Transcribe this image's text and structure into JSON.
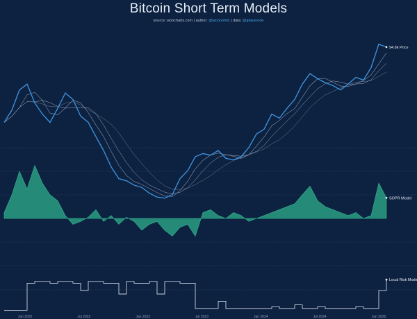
{
  "chart_data": {
    "type": "line",
    "title": "Bitcoin Short Term Models",
    "subtitle": {
      "prefix": "source: ",
      "source": "woocharts.com",
      "author_prefix": " | author: ",
      "author": "@woonomic",
      "data_prefix": " | data: ",
      "data": "@glassnode"
    },
    "x_ticks": [
      "Jan 2022",
      "Jul 2022",
      "Jan 2023",
      "Jul 2023",
      "Jan 2024",
      "Jul 2024",
      "Jan 2025"
    ],
    "panels": [
      {
        "name": "Price",
        "label": "94.8k Price",
        "color": "#3d8fd8",
        "log_scale": true,
        "x": [
          0,
          0.02,
          0.04,
          0.06,
          0.08,
          0.1,
          0.12,
          0.14,
          0.16,
          0.18,
          0.2,
          0.22,
          0.24,
          0.26,
          0.28,
          0.3,
          0.32,
          0.34,
          0.36,
          0.38,
          0.4,
          0.42,
          0.44,
          0.46,
          0.48,
          0.5,
          0.52,
          0.54,
          0.56,
          0.58,
          0.6,
          0.62,
          0.64,
          0.66,
          0.68,
          0.7,
          0.72,
          0.74,
          0.76,
          0.78,
          0.8,
          0.82,
          0.84,
          0.86,
          0.88,
          0.9,
          0.92,
          0.94,
          0.96,
          0.98,
          1
        ],
        "values": [
          40000,
          46000,
          58000,
          62000,
          50000,
          44000,
          40000,
          47000,
          56000,
          52000,
          43000,
          40000,
          34000,
          29000,
          24000,
          21000,
          20500,
          19500,
          19000,
          17800,
          17000,
          16800,
          17500,
          21000,
          23000,
          27000,
          28000,
          27500,
          29000,
          26500,
          26000,
          27000,
          30000,
          35000,
          37000,
          44000,
          42000,
          47000,
          52000,
          62000,
          70000,
          66000,
          63000,
          61000,
          58000,
          62000,
          67000,
          65000,
          75000,
          98000,
          94800
        ]
      },
      {
        "name": "SOPR",
        "label": "SOPR Model",
        "color": "#2a9d82",
        "x": [
          0,
          0.02,
          0.04,
          0.06,
          0.08,
          0.1,
          0.12,
          0.14,
          0.16,
          0.18,
          0.2,
          0.22,
          0.24,
          0.26,
          0.28,
          0.3,
          0.32,
          0.34,
          0.36,
          0.38,
          0.4,
          0.42,
          0.44,
          0.46,
          0.48,
          0.5,
          0.52,
          0.54,
          0.56,
          0.58,
          0.6,
          0.62,
          0.64,
          0.66,
          0.68,
          0.7,
          0.72,
          0.74,
          0.76,
          0.78,
          0.8,
          0.82,
          0.84,
          0.86,
          0.88,
          0.9,
          0.92,
          0.94,
          0.96,
          0.98,
          1
        ],
        "values": [
          0.1,
          0.4,
          0.8,
          0.5,
          0.9,
          0.6,
          0.4,
          0.3,
          0.05,
          -0.1,
          -0.05,
          0.02,
          0.15,
          -0.05,
          0.05,
          -0.1,
          0.02,
          -0.05,
          -0.2,
          -0.1,
          -0.05,
          -0.2,
          -0.3,
          -0.15,
          -0.1,
          -0.3,
          0.1,
          0.15,
          0.05,
          0.0,
          0.1,
          0.05,
          -0.05,
          0.0,
          0.05,
          0.1,
          0.15,
          0.2,
          0.25,
          0.4,
          0.55,
          0.3,
          0.2,
          0.15,
          0.1,
          0.05,
          0.1,
          0.0,
          0.05,
          0.6,
          0.35
        ]
      },
      {
        "name": "Local Risk",
        "label": "Local Risk Model",
        "color": "#c9d3df",
        "x": [
          0,
          0.02,
          0.04,
          0.06,
          0.08,
          0.1,
          0.12,
          0.14,
          0.16,
          0.18,
          0.2,
          0.22,
          0.24,
          0.26,
          0.28,
          0.3,
          0.32,
          0.34,
          0.36,
          0.38,
          0.4,
          0.42,
          0.44,
          0.46,
          0.48,
          0.5,
          0.52,
          0.54,
          0.56,
          0.58,
          0.6,
          0.62,
          0.64,
          0.66,
          0.68,
          0.7,
          0.72,
          0.74,
          0.76,
          0.78,
          0.8,
          0.82,
          0.84,
          0.86,
          0.88,
          0.9,
          0.92,
          0.94,
          0.96,
          0.98,
          1
        ],
        "values": [
          0.05,
          0.05,
          0.05,
          0.8,
          0.85,
          0.85,
          0.8,
          0.85,
          0.85,
          0.8,
          0.6,
          0.85,
          0.85,
          0.8,
          0.8,
          0.5,
          0.85,
          0.8,
          0.8,
          0.85,
          0.5,
          0.85,
          0.85,
          0.8,
          0.8,
          0.1,
          0.1,
          0.1,
          0.3,
          0.1,
          0.1,
          0.1,
          0.1,
          0.1,
          0.1,
          0.15,
          0.1,
          0.1,
          0.2,
          0.1,
          0.1,
          0.15,
          0.1,
          0.1,
          0.1,
          0.1,
          0.15,
          0.1,
          0.1,
          0.6,
          0.9
        ]
      }
    ]
  }
}
